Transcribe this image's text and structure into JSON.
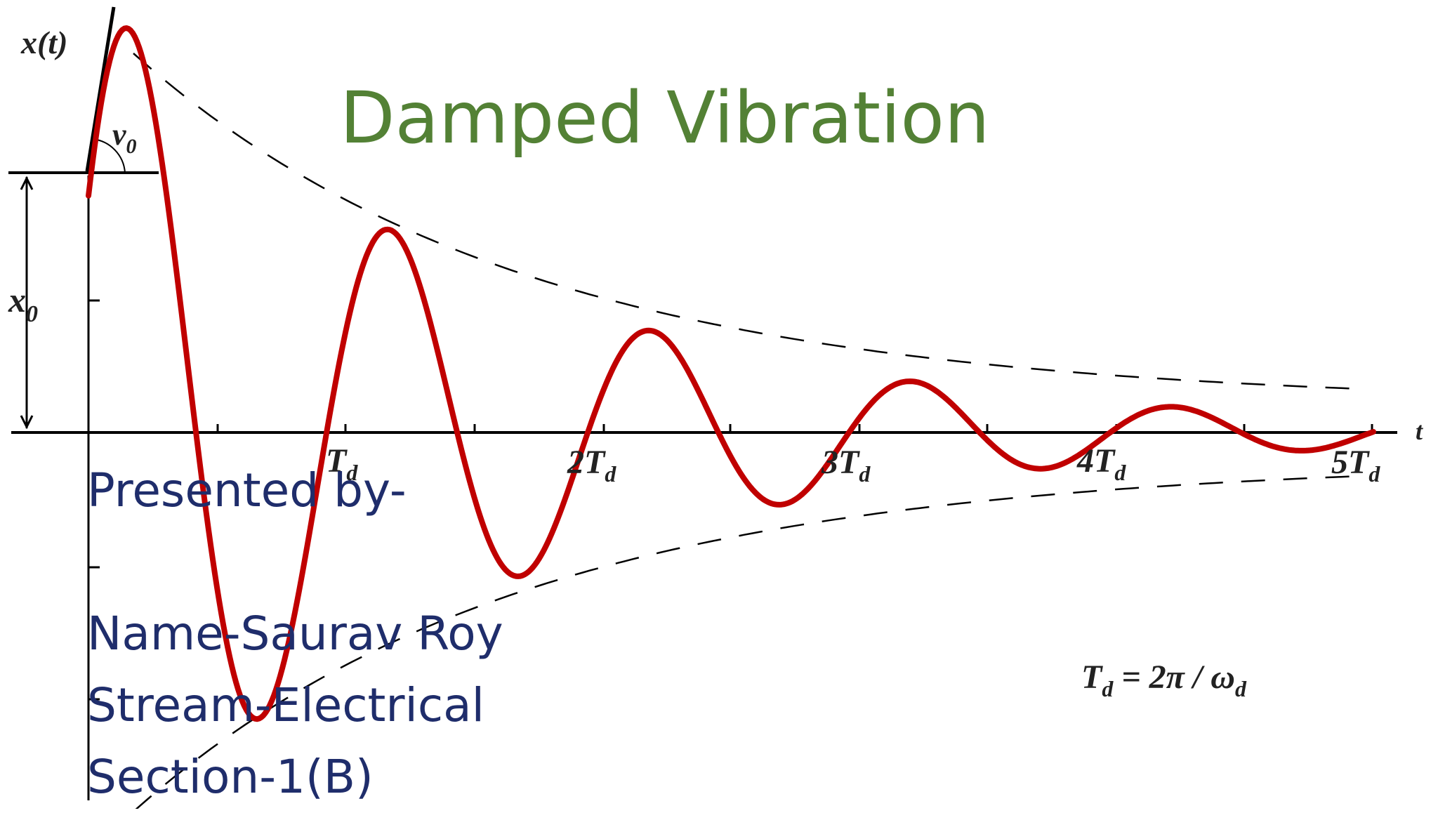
{
  "title": "Damped Vibration",
  "presenter": {
    "heading": "Presented by-",
    "name": "Name-Saurav Roy",
    "stream": "Stream-Electrical",
    "section": "Section-1(B)"
  },
  "diagram": {
    "y_axis_label": "x(t)",
    "t_axis_label": "t",
    "initial_displacement_label": "x",
    "initial_displacement_sub": "0",
    "initial_velocity_label": "v",
    "initial_velocity_sub": "0",
    "period_ticks": [
      {
        "coef": "",
        "sub": "d"
      },
      {
        "coef": "2",
        "sub": "d"
      },
      {
        "coef": "3",
        "sub": "d"
      },
      {
        "coef": "4",
        "sub": "d"
      },
      {
        "coef": "5",
        "sub": "d"
      }
    ],
    "period_symbol": "T",
    "formula": {
      "lhs": "T",
      "lhs_sub": "d",
      "rhs": " = 2π / ω",
      "rhs_sub": "d"
    },
    "colors": {
      "curve": "#c00000",
      "axes": "#000000",
      "envelope": "#000000"
    }
  }
}
